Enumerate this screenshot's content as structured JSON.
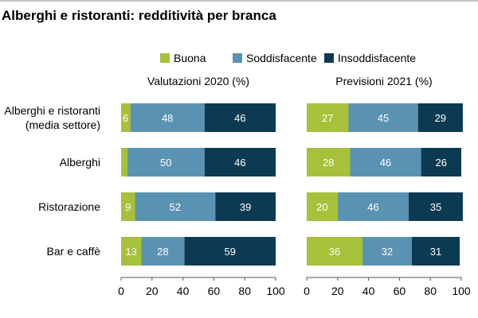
{
  "chart_data": {
    "type": "bar",
    "orientation": "horizontal",
    "stacked": true,
    "title": "Alberghi e ristoranti: redditività per branca",
    "categories": [
      [
        "Alberghi e ristoranti",
        "(media settore)"
      ],
      [
        "Alberghi"
      ],
      [
        "Ristorazione"
      ],
      [
        "Bar e caffè"
      ]
    ],
    "legend": {
      "position": "top-right",
      "items": [
        {
          "name": "Buona",
          "color": "#a6c13a"
        },
        {
          "name": "Soddisfacente",
          "color": "#5a93b2"
        },
        {
          "name": "Insoddisfacente",
          "color": "#0b3a52"
        }
      ]
    },
    "xlim": [
      0,
      100
    ],
    "xticks": [
      0,
      20,
      40,
      60,
      80,
      100
    ],
    "grid": false,
    "panels": [
      {
        "title": "Valutazioni 2020 (%)",
        "series": [
          {
            "name": "Buona",
            "values": [
              6,
              4,
              9,
              13
            ]
          },
          {
            "name": "Soddisfacente",
            "values": [
              48,
              50,
              52,
              28
            ]
          },
          {
            "name": "Insoddisfacente",
            "values": [
              46,
              46,
              39,
              59
            ]
          }
        ],
        "labels": [
          [
            "6",
            "48",
            "46"
          ],
          [
            "",
            "50",
            "46"
          ],
          [
            "9",
            "52",
            "39"
          ],
          [
            "13",
            "28",
            "59"
          ]
        ]
      },
      {
        "title": "Previsioni 2021 (%)",
        "series": [
          {
            "name": "Buona",
            "values": [
              27,
              28,
              20,
              36
            ]
          },
          {
            "name": "Soddisfacente",
            "values": [
              45,
              46,
              46,
              32
            ]
          },
          {
            "name": "Insoddisfacente",
            "values": [
              29,
              26,
              35,
              31
            ]
          }
        ],
        "labels": [
          [
            "27",
            "45",
            "29"
          ],
          [
            "28",
            "46",
            "26"
          ],
          [
            "20",
            "46",
            "35"
          ],
          [
            "36",
            "32",
            "31"
          ]
        ]
      }
    ]
  }
}
